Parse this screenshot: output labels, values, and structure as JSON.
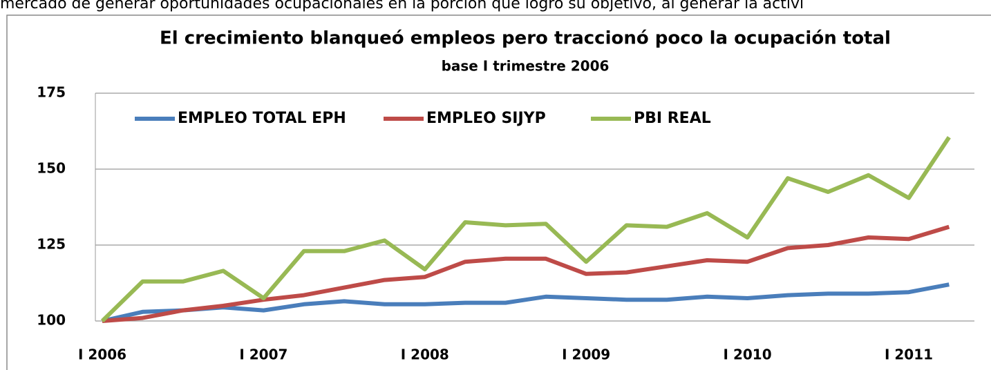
{
  "page_text": "mercado de generar oportunidades ocupacionales en   la porción que logró su objetivo, al generar la activi",
  "chart_data": {
    "type": "line",
    "title": "El crecimiento blanqueó empleos pero traccionó poco la ocupación total",
    "subtitle": "base I trimestre 2006",
    "categories": [
      "I 2006",
      null,
      null,
      null,
      "I 2007",
      null,
      null,
      null,
      "I 2008",
      null,
      null,
      null,
      "I 2009",
      null,
      null,
      null,
      "I 2010",
      null,
      null,
      null,
      "I 2011",
      null
    ],
    "series": [
      {
        "name": "EMPLEO TOTAL EPH",
        "color": "#4a7ebb",
        "values": [
          100,
          103,
          103.5,
          104.5,
          103.5,
          105.5,
          106.5,
          105.5,
          105.5,
          106,
          106,
          108,
          107.5,
          107,
          107,
          108,
          107.5,
          108.5,
          109,
          109,
          109.5,
          112
        ]
      },
      {
        "name": "EMPLEO SIJYP",
        "color": "#be4b48",
        "values": [
          100,
          101,
          103.5,
          105,
          107,
          108.5,
          111,
          113.5,
          114.5,
          119.5,
          120.5,
          120.5,
          115.5,
          116,
          118,
          120,
          119.5,
          124,
          125,
          127.5,
          127,
          131
        ]
      },
      {
        "name": "PBI REAL",
        "color": "#98b954",
        "values": [
          100,
          113,
          113,
          116.5,
          107.5,
          123,
          123,
          126.5,
          117,
          132.5,
          131.5,
          132,
          119.5,
          131.5,
          131,
          135.5,
          127.5,
          147,
          142.5,
          148,
          140.5,
          160.5
        ]
      }
    ],
    "ylim": [
      100,
      175
    ],
    "yticks": [
      100,
      125,
      150,
      175
    ],
    "grid": true,
    "legend": "top-left"
  }
}
